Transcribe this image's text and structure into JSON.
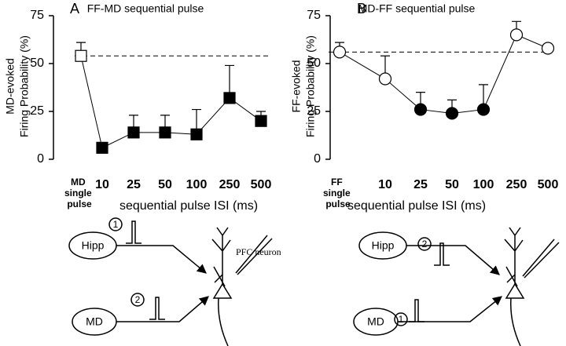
{
  "chart_data": [
    {
      "type": "line",
      "panel": "A",
      "title": "FF-MD sequential pulse",
      "ylabel": [
        "MD-evoked",
        "Firing Probability (%)"
      ],
      "xlabel": "sequential pulse ISI (ms)",
      "categories": [
        "MD single pulse",
        "10",
        "25",
        "50",
        "100",
        "250",
        "500"
      ],
      "values": [
        54,
        6,
        14,
        14,
        13,
        32,
        20
      ],
      "errors": [
        7,
        null,
        9,
        9,
        13,
        17,
        5
      ],
      "marker": "square",
      "filled": [
        false,
        true,
        true,
        true,
        true,
        true,
        true
      ],
      "baseline": 54,
      "color": "#000000",
      "ylim": [
        0,
        75
      ],
      "yticks": [
        0,
        25,
        50,
        75
      ]
    },
    {
      "type": "line",
      "panel": "B",
      "title": "MD-FF sequential pulse",
      "ylabel": [
        "FF-evoked",
        "Firing Probability (%)"
      ],
      "xlabel": "sequential pulse ISI (ms)",
      "categories": [
        "FF single pulse",
        "10",
        "25",
        "50",
        "100",
        "250",
        "500"
      ],
      "values": [
        56,
        42,
        26,
        24,
        26,
        65,
        58
      ],
      "errors": [
        5,
        12,
        9,
        7,
        13,
        7,
        null
      ],
      "marker": "circle",
      "filled": [
        false,
        false,
        true,
        true,
        true,
        false,
        false
      ],
      "baseline": 56,
      "color": "#000000",
      "ylim": [
        0,
        75
      ],
      "yticks": [
        0,
        25,
        50,
        75
      ]
    }
  ],
  "diagrams": [
    {
      "input1": "Hipp",
      "input2": "MD",
      "order1": "1",
      "order2": "2",
      "target": "PFC neuron"
    },
    {
      "input1": "Hipp",
      "input2": "MD",
      "order1": "2",
      "order2": "1"
    }
  ]
}
